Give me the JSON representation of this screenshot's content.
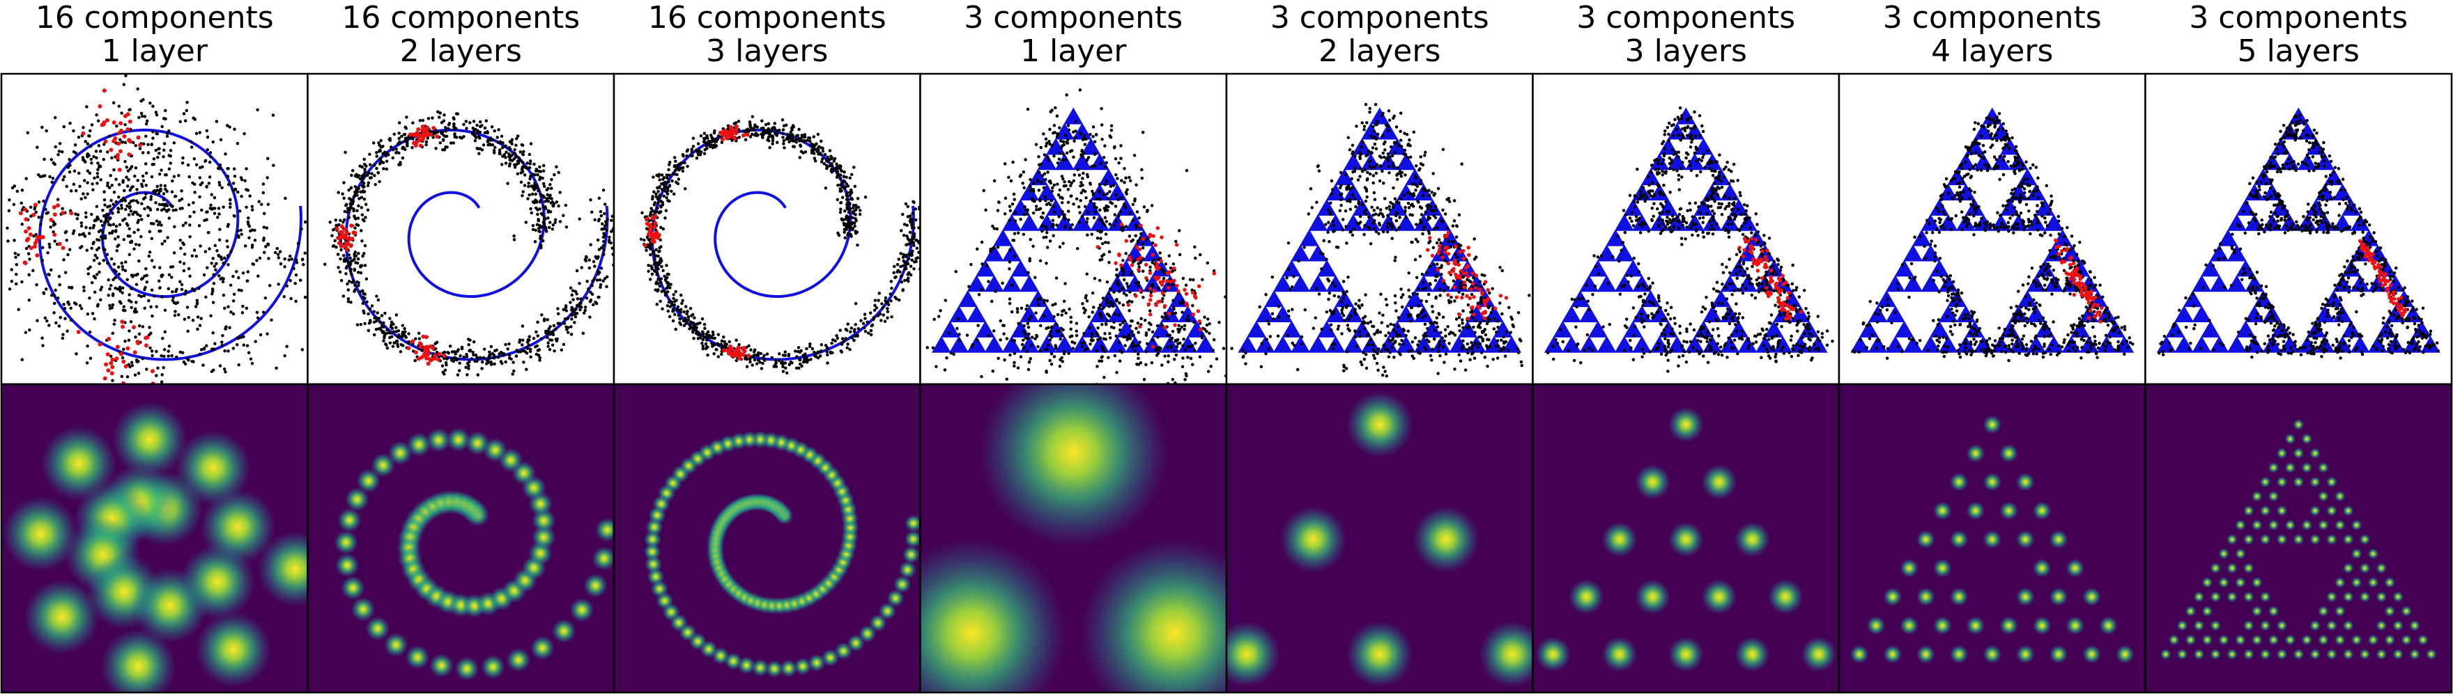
{
  "figure": {
    "panels": [
      {
        "title_line1": "16 components",
        "title_line2": "1 layer",
        "kind": "spiral",
        "components": 16,
        "layers": 1
      },
      {
        "title_line1": "16 components",
        "title_line2": "2 layers",
        "kind": "spiral",
        "components": 16,
        "layers": 2
      },
      {
        "title_line1": "16 components",
        "title_line2": "3 layers",
        "kind": "spiral",
        "components": 16,
        "layers": 3
      },
      {
        "title_line1": "3 components",
        "title_line2": "1 layer",
        "kind": "triangle",
        "components": 3,
        "layers": 1
      },
      {
        "title_line1": "3 components",
        "title_line2": "2 layers",
        "kind": "triangle",
        "components": 3,
        "layers": 2
      },
      {
        "title_line1": "3 components",
        "title_line2": "3 layers",
        "kind": "triangle",
        "components": 3,
        "layers": 3
      },
      {
        "title_line1": "3 components",
        "title_line2": "4 layers",
        "kind": "triangle",
        "components": 3,
        "layers": 4
      },
      {
        "title_line1": "3 components",
        "title_line2": "5 layers",
        "kind": "triangle",
        "components": 3,
        "layers": 5
      }
    ],
    "colors": {
      "curve": "#1010e0",
      "samples": "#000000",
      "highlight": "#ee1111",
      "density_bg": "#440154",
      "density_mid": "#21918c",
      "density_peak": "#fde725"
    }
  }
}
